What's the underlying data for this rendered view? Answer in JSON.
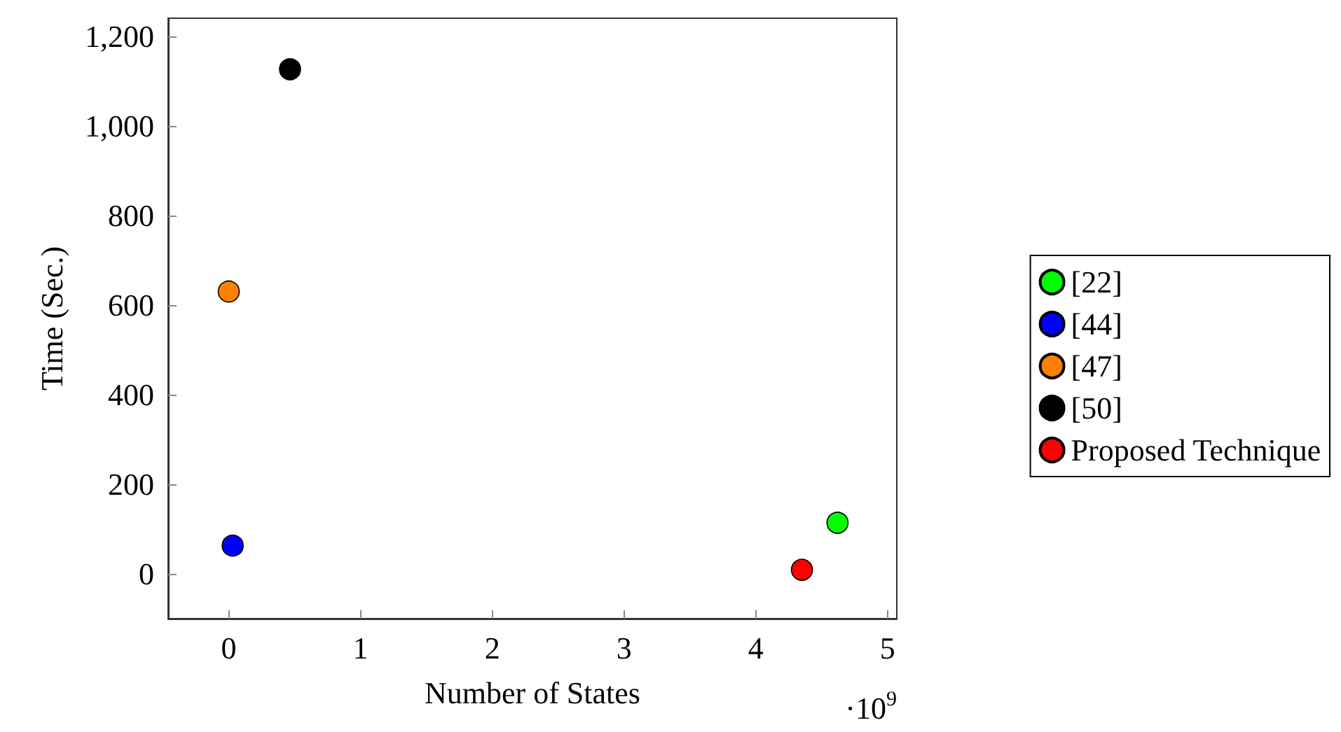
{
  "chart_data": {
    "type": "scatter",
    "xlabel": "Number of States",
    "ylabel": "Time (Sec.)",
    "annotations": [
      "·10$^{9}$"
    ],
    "xlim": [
      -0.46,
      5.07
    ],
    "xticks": [
      0,
      1,
      2,
      3,
      4,
      5
    ],
    "ylim": [
      -100,
      1240
    ],
    "yticks": [
      0,
      200,
      400,
      600,
      800,
      {
        "value": 1000,
        "label": "1,000"
      },
      {
        "value": 1200,
        "label": "1,200"
      }
    ],
    "grid": false,
    "legend": "right",
    "marker": "circle",
    "series": [
      {
        "name": "[22]",
        "color": "#00ff00",
        "x": [
          4.62
        ],
        "values": [
          114
        ]
      },
      {
        "name": "[44]",
        "color": "#0000ff",
        "x": [
          0.03
        ],
        "values": [
          63
        ]
      },
      {
        "name": "[47]",
        "color": "#ff8000",
        "x": [
          0
        ],
        "values": [
          630
        ]
      },
      {
        "name": "[50]",
        "color": "#000000",
        "x": [
          0.465
        ],
        "values": [
          1126
        ]
      },
      {
        "name": "Proposed Technique",
        "color": "#ff0000",
        "x": [
          4.35
        ],
        "values": [
          9
        ]
      }
    ]
  }
}
